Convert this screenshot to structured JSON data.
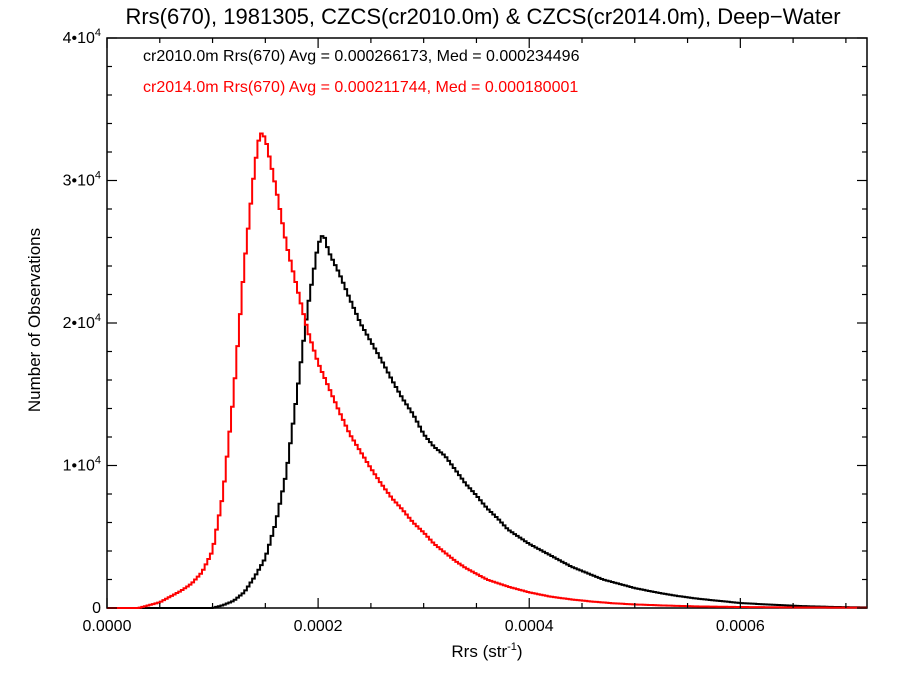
{
  "chart_data": {
    "type": "line",
    "title": "Rrs(670), 1981305, CZCS(cr2010.0m) & CZCS(cr2014.0m), Deep−Water",
    "xlabel": "Rrs (str",
    "xlabel_sup": "-1",
    "xlabel_suffix": ")",
    "ylabel": "Number of Observations",
    "xlim": [
      0.0,
      0.00072
    ],
    "ylim": [
      0,
      40000
    ],
    "x_ticks": [
      {
        "value": 0.0,
        "label": "0.0000"
      },
      {
        "value": 0.0002,
        "label": "0.0002"
      },
      {
        "value": 0.0004,
        "label": "0.0004"
      },
      {
        "value": 0.0006,
        "label": "0.0006"
      }
    ],
    "y_ticks": [
      {
        "value": 0,
        "base": "0",
        "exp": ""
      },
      {
        "value": 10000,
        "base": "1•10",
        "exp": "4"
      },
      {
        "value": 20000,
        "base": "2•10",
        "exp": "4"
      },
      {
        "value": 30000,
        "base": "3•10",
        "exp": "4"
      },
      {
        "value": 40000,
        "base": "4•10",
        "exp": "4"
      }
    ],
    "grid": false,
    "style": "step-histogram",
    "series": [
      {
        "name": "cr2010.0m Rrs(670) Avg = 0.000266173, Med = 0.000234496",
        "color": "#000000",
        "points": [
          [
            0.0001,
            0
          ],
          [
            0.00011,
            200
          ],
          [
            0.00012,
            500
          ],
          [
            0.00013,
            1100
          ],
          [
            0.00014,
            2200
          ],
          [
            0.00015,
            3500
          ],
          [
            0.00016,
            6000
          ],
          [
            0.00017,
            9500
          ],
          [
            0.00018,
            15000
          ],
          [
            0.00019,
            21000
          ],
          [
            0.0002,
            25500
          ],
          [
            0.000205,
            26300
          ],
          [
            0.00021,
            25000
          ],
          [
            0.00022,
            23500
          ],
          [
            0.00023,
            21700
          ],
          [
            0.00024,
            20000
          ],
          [
            0.00025,
            18700
          ],
          [
            0.00026,
            17400
          ],
          [
            0.00027,
            16000
          ],
          [
            0.00028,
            14700
          ],
          [
            0.00029,
            13600
          ],
          [
            0.0003,
            12200
          ],
          [
            0.00031,
            11300
          ],
          [
            0.00032,
            10700
          ],
          [
            0.00033,
            9700
          ],
          [
            0.00034,
            8700
          ],
          [
            0.00035,
            7900
          ],
          [
            0.00036,
            7000
          ],
          [
            0.00037,
            6300
          ],
          [
            0.00038,
            5500
          ],
          [
            0.00039,
            5000
          ],
          [
            0.0004,
            4500
          ],
          [
            0.00041,
            4100
          ],
          [
            0.00042,
            3700
          ],
          [
            0.00043,
            3300
          ],
          [
            0.00044,
            2900
          ],
          [
            0.00045,
            2600
          ],
          [
            0.00046,
            2300
          ],
          [
            0.00047,
            2000
          ],
          [
            0.00048,
            1800
          ],
          [
            0.00049,
            1600
          ],
          [
            0.0005,
            1400
          ],
          [
            0.00052,
            1100
          ],
          [
            0.00054,
            850
          ],
          [
            0.00056,
            650
          ],
          [
            0.00058,
            500
          ],
          [
            0.0006,
            350
          ],
          [
            0.00063,
            230
          ],
          [
            0.00066,
            130
          ],
          [
            0.00069,
            70
          ],
          [
            0.00072,
            40
          ]
        ]
      },
      {
        "name": "cr2014.0m Rrs(670) Avg = 0.000211744, Med = 0.000180001",
        "color": "#ff0000",
        "points": [
          [
            3e-05,
            0
          ],
          [
            4e-05,
            200
          ],
          [
            5e-05,
            400
          ],
          [
            6e-05,
            800
          ],
          [
            7e-05,
            1200
          ],
          [
            8e-05,
            1700
          ],
          [
            9e-05,
            2500
          ],
          [
            0.0001,
            4000
          ],
          [
            0.00011,
            8000
          ],
          [
            0.00012,
            15000
          ],
          [
            0.00013,
            24000
          ],
          [
            0.00014,
            31000
          ],
          [
            0.000145,
            33400
          ],
          [
            0.00015,
            33000
          ],
          [
            0.00016,
            29500
          ],
          [
            0.00017,
            25500
          ],
          [
            0.00018,
            22500
          ],
          [
            0.00019,
            19500
          ],
          [
            0.0002,
            17200
          ],
          [
            0.00021,
            15500
          ],
          [
            0.00022,
            13800
          ],
          [
            0.00023,
            12200
          ],
          [
            0.00024,
            11000
          ],
          [
            0.00025,
            9800
          ],
          [
            0.00026,
            8700
          ],
          [
            0.00027,
            7700
          ],
          [
            0.00028,
            6900
          ],
          [
            0.00029,
            6000
          ],
          [
            0.0003,
            5300
          ],
          [
            0.00031,
            4500
          ],
          [
            0.00032,
            3900
          ],
          [
            0.00033,
            3300
          ],
          [
            0.00034,
            2800
          ],
          [
            0.00035,
            2400
          ],
          [
            0.00036,
            2000
          ],
          [
            0.00038,
            1500
          ],
          [
            0.0004,
            1100
          ],
          [
            0.00042,
            800
          ],
          [
            0.00044,
            600
          ],
          [
            0.00046,
            450
          ],
          [
            0.00048,
            330
          ],
          [
            0.0005,
            250
          ],
          [
            0.00053,
            170
          ],
          [
            0.00056,
            110
          ],
          [
            0.0006,
            70
          ],
          [
            0.00065,
            40
          ],
          [
            0.00072,
            20
          ]
        ]
      }
    ]
  }
}
